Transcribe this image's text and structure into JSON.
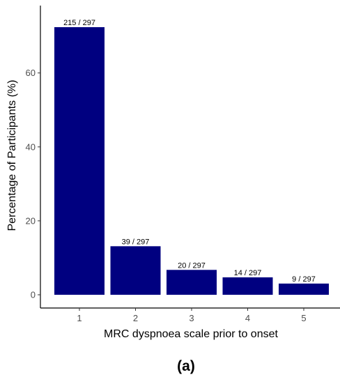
{
  "chart_data": {
    "type": "bar",
    "categories": [
      "1",
      "2",
      "3",
      "4",
      "5"
    ],
    "values": [
      72.39,
      13.13,
      6.73,
      4.71,
      3.03
    ],
    "data_labels": [
      "215 / 297",
      "39 / 297",
      "20 / 297",
      "14 / 297",
      "9 / 297"
    ],
    "xlabel": "MRC dyspnoea scale prior to onset",
    "ylabel": "Percentage of Participants (%)",
    "y_ticks": [
      "0",
      "20",
      "40",
      "60"
    ],
    "ylim": [
      0,
      76
    ],
    "grid": false,
    "bar_color": "#000080",
    "panel_label": "(a)"
  }
}
